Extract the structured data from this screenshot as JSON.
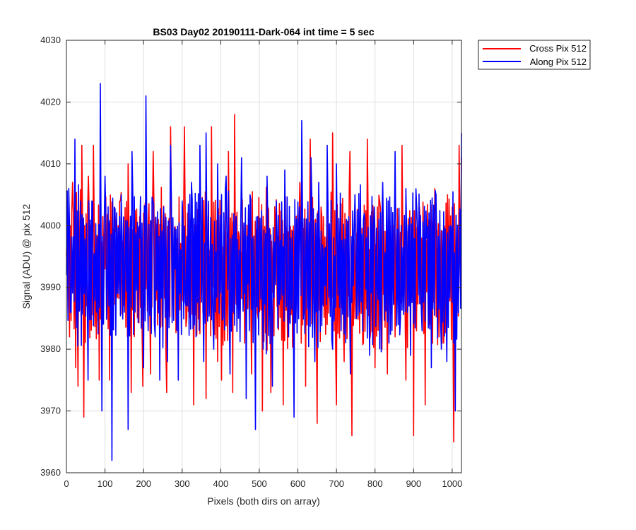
{
  "chart_data": {
    "type": "line",
    "title": "BS03 Day02 20190111-Dark-064 int time = 5 sec",
    "xlabel": "Pixels (both dirs on array)",
    "ylabel": "Signal (ADU) @ pix 512",
    "xlim": [
      0,
      1024
    ],
    "ylim": [
      3960,
      4030
    ],
    "x_ticks": [
      0,
      100,
      200,
      300,
      400,
      500,
      600,
      700,
      800,
      900,
      1000
    ],
    "y_ticks": [
      3960,
      3970,
      3980,
      3990,
      4000,
      4010,
      4020,
      4030
    ],
    "grid": true,
    "legend_position": "outside-top-right",
    "series": [
      {
        "name": "Cross Pix 512",
        "color": "#ff0000",
        "x": [
          0,
          8,
          16,
          24,
          30,
          40,
          45,
          57,
          70,
          85,
          100,
          112,
          128,
          140,
          150,
          160,
          168,
          180,
          198,
          212,
          218,
          225,
          240,
          250,
          260,
          270,
          280,
          290,
          306,
          312,
          322,
          330,
          350,
          362,
          376,
          392,
          402,
          420,
          431,
          436,
          446,
          462,
          480,
          497,
          508,
          522,
          530,
          542,
          562,
          575,
          590,
          605,
          620,
          632,
          650,
          660,
          676,
          690,
          700,
          710,
          720,
          735,
          740,
          752,
          770,
          780,
          789,
          800,
          812,
          818,
          832,
          845,
          852,
          870,
          880,
          892,
          900,
          915,
          930,
          945,
          955,
          966,
          978,
          990,
          1004,
          1012,
          1018,
          1024
        ],
        "y": [
          3995,
          3982,
          4007,
          3977,
          3974,
          4013,
          3969,
          4008,
          4013,
          3975,
          3993,
          3975,
          3999,
          4004,
          3991,
          4010,
          3973,
          3996,
          3974,
          4000,
          3976,
          4012,
          3988,
          4000,
          3973,
          4016,
          3998,
          3979,
          4016,
          3985,
          4001,
          3971,
          3989,
          3972,
          4016,
          3978,
          3975,
          4012,
          3973,
          4018,
          3999,
          3981,
          3976,
          3985,
          3970,
          4003,
          3973,
          3997,
          3971,
          3999,
          3981,
          4007,
          3974,
          4014,
          3968,
          4003,
          3984,
          4015,
          3971,
          3997,
          3978,
          4012,
          3966,
          3994,
          3981,
          4014,
          3983,
          3977,
          4004,
          3980,
          3976,
          3997,
          3982,
          4013,
          3975,
          3984,
          3966,
          4003,
          3971,
          3984,
          4006,
          3982,
          3981,
          3987,
          3965,
          3993,
          4013,
          4011
        ]
      },
      {
        "name": "Along Pix 512",
        "color": "#0000ff",
        "x": [
          0,
          6,
          12,
          22,
          35,
          46,
          56,
          66,
          78,
          88,
          92,
          100,
          106,
          118,
          124,
          136,
          142,
          152,
          160,
          170,
          178,
          190,
          200,
          206,
          212,
          224,
          230,
          242,
          252,
          262,
          270,
          282,
          290,
          300,
          310,
          324,
          336,
          346,
          356,
          362,
          372,
          382,
          392,
          406,
          414,
          424,
          438,
          446,
          454,
          466,
          476,
          490,
          500,
          510,
          520,
          534,
          544,
          556,
          566,
          576,
          590,
          604,
          610,
          620,
          634,
          644,
          654,
          666,
          676,
          690,
          700,
          712,
          726,
          736,
          748,
          760,
          772,
          786,
          798,
          808,
          820,
          836,
          852,
          866,
          880,
          892,
          908,
          922,
          934,
          946,
          958,
          972,
          986,
          996,
          1008,
          1018,
          1024
        ],
        "y": [
          3992,
          4006,
          3986,
          4014,
          3991,
          3989,
          3975,
          4004,
          3986,
          4023,
          3970,
          4008,
          3990,
          3962,
          4003,
          3989,
          4005,
          3993,
          3967,
          4012,
          3986,
          3998,
          3977,
          4021,
          3983,
          4004,
          3982,
          3975,
          4003,
          3978,
          4013,
          3993,
          3975,
          4004,
          3987,
          4007,
          3982,
          4013,
          3978,
          4015,
          3993,
          3980,
          4010,
          3985,
          4008,
          3976,
          4000,
          3985,
          4011,
          3972,
          4005,
          3967,
          3999,
          3980,
          4008,
          3974,
          4004,
          3988,
          4009,
          3982,
          3969,
          4003,
          4017,
          3994,
          4011,
          3978,
          4007,
          3987,
          4013,
          3980,
          4010,
          3983,
          4001,
          3976,
          4005,
          3986,
          4002,
          3979,
          4003,
          3988,
          4007,
          3981,
          4012,
          3985,
          4006,
          3979,
          4003,
          3983,
          3998,
          3977,
          4005,
          3980,
          3978,
          4000,
          3970,
          3994,
          4015
        ]
      }
    ]
  }
}
